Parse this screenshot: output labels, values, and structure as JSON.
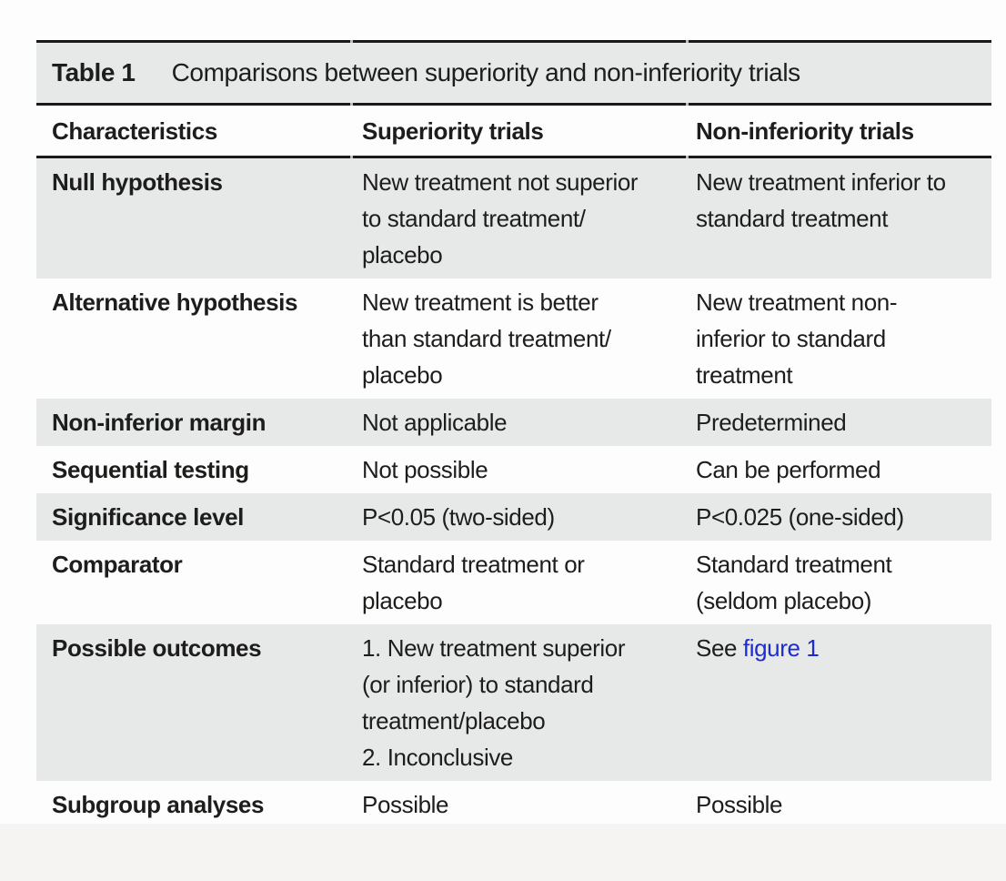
{
  "table": {
    "title_label": "Table 1",
    "title": "Comparisons between superiority and non-inferiority trials",
    "columns": {
      "characteristics": "Characteristics",
      "superiority": "Superiority trials",
      "noninferiority": "Non-inferiority trials"
    },
    "rows": [
      {
        "label": "Null hypothesis",
        "superiority": "New treatment not superior\nto standard treatment/\nplacebo",
        "noninferiority": "New treatment inferior to\nstandard treatment",
        "shaded": true
      },
      {
        "label": "Alternative hypothesis",
        "superiority": "New treatment is better\nthan standard treatment/\nplacebo",
        "noninferiority": "New treatment non-\ninferior to standard\ntreatment",
        "shaded": false
      },
      {
        "label": "Non-inferior margin",
        "superiority": "Not applicable",
        "noninferiority": "Predetermined",
        "shaded": true
      },
      {
        "label": "Sequential testing",
        "superiority": "Not possible",
        "noninferiority": "Can be performed",
        "shaded": false
      },
      {
        "label": "Significance level",
        "superiority": "P<0.05 (two-sided)",
        "noninferiority": "P<0.025 (one-sided)",
        "shaded": true
      },
      {
        "label": "Comparator",
        "superiority": "Standard treatment or\nplacebo",
        "noninferiority": "Standard treatment\n(seldom placebo)",
        "shaded": false
      },
      {
        "label": "Possible outcomes",
        "superiority": "1. New treatment superior\n(or inferior) to standard\ntreatment/placebo\n2. Inconclusive",
        "noninferiority_prefix": "See ",
        "noninferiority_link": "figure 1",
        "shaded": true
      },
      {
        "label": "Subgroup analyses",
        "superiority": "Possible",
        "noninferiority": "Possible",
        "shaded": false
      }
    ],
    "colors": {
      "shaded_row_background": "#e7e8e8",
      "rule": "#1a1a19",
      "text": "#1d1d1c",
      "link": "#1e2bd2"
    }
  }
}
